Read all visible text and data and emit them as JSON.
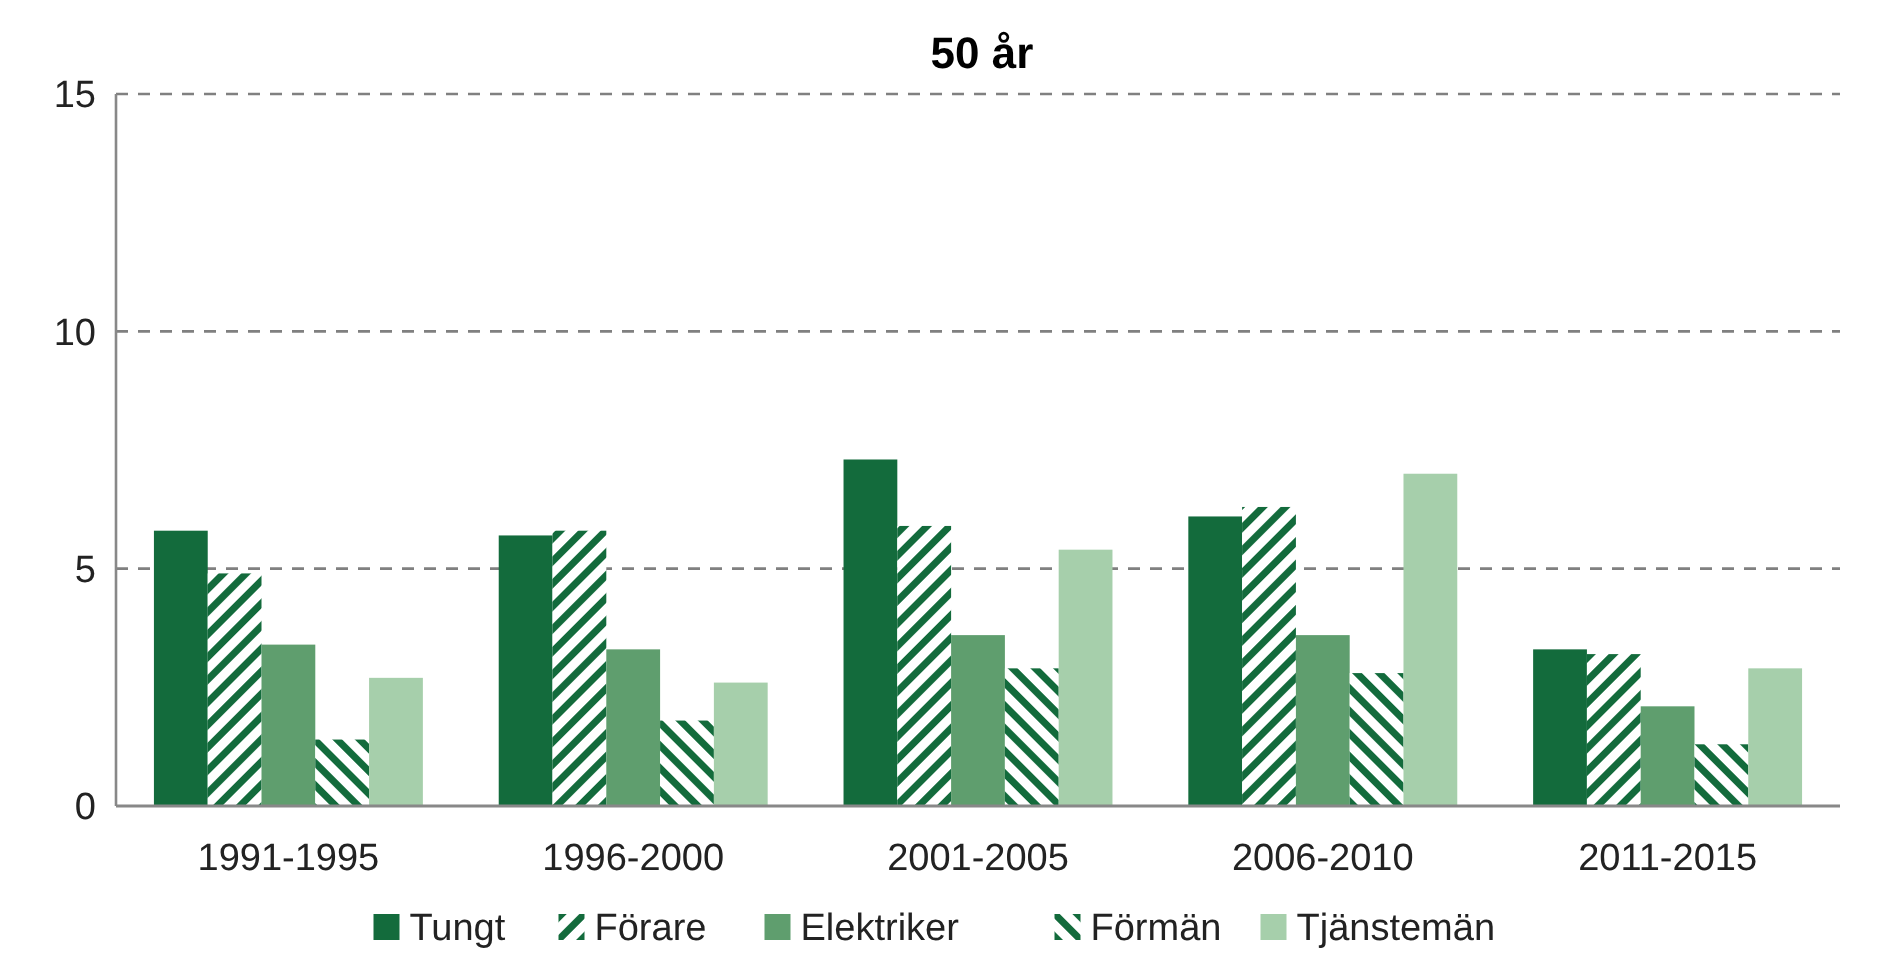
{
  "chart_data": {
    "type": "bar",
    "title": "50 år",
    "categories": [
      "1991-1995",
      "1996-2000",
      "2001-2005",
      "2006-2010",
      "2011-2015"
    ],
    "series": [
      {
        "name": "Tungt",
        "color": "#136b3c",
        "values": [
          5.8,
          5.7,
          7.3,
          6.1,
          3.3
        ]
      },
      {
        "name": "Förare",
        "color": "#136b3c",
        "values": [
          4.9,
          5.8,
          5.9,
          6.3,
          3.2
        ]
      },
      {
        "name": "Elektriker",
        "color": "#5f9e6e",
        "values": [
          3.4,
          3.3,
          3.6,
          3.6,
          2.1
        ]
      },
      {
        "name": "Förmän",
        "color": "#136b3c",
        "values": [
          1.4,
          1.8,
          2.9,
          2.8,
          1.3
        ]
      },
      {
        "name": "Tjänstemän",
        "color": "#a6cfab",
        "values": [
          2.7,
          2.6,
          5.4,
          7.0,
          2.9
        ]
      }
    ],
    "ylim": [
      0,
      15
    ],
    "yticks": [
      0,
      5,
      10,
      15
    ],
    "grid": "y",
    "legend": "bottom"
  }
}
